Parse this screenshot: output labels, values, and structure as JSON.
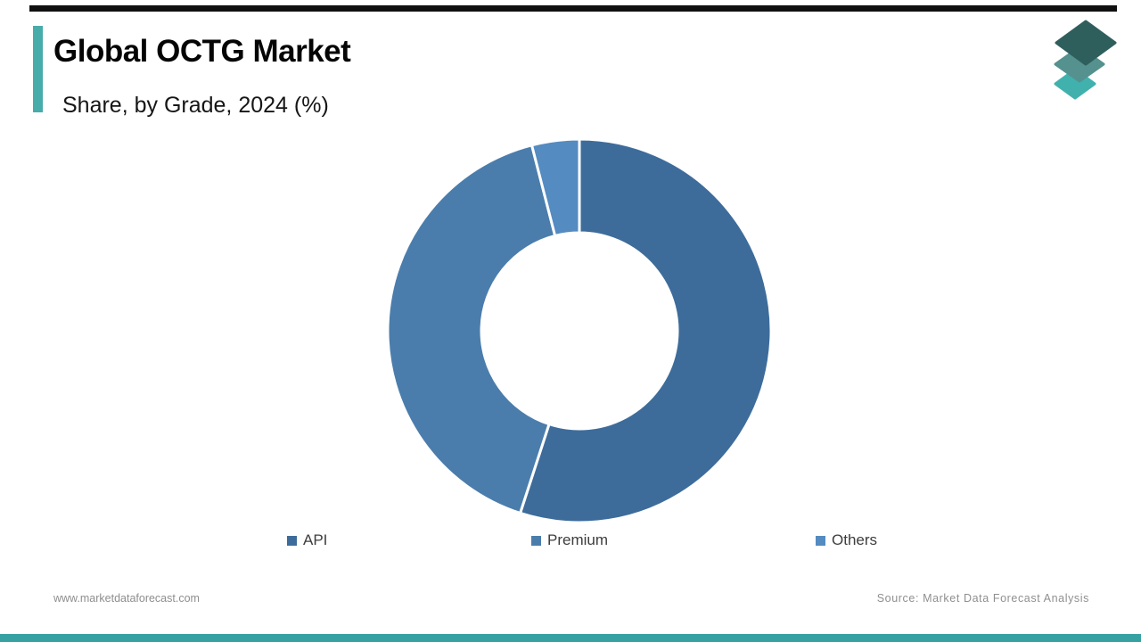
{
  "header": {
    "title": "Global OCTG Market",
    "subtitle": "Share, by Grade, 2024 (%)"
  },
  "branding": {
    "accent_color": "#48acab",
    "top_bar_color": "#101010",
    "bottom_bar_color": "#35a2a1",
    "logo_icon": "stacked-layers-icon",
    "logo_colors": [
      "#41b1ae",
      "#55918e",
      "#2f5f5d"
    ]
  },
  "footer": {
    "website": "www.marketdataforecast.com",
    "source": "Source: Market Data Forecast Analysis"
  },
  "chart_data": {
    "type": "pie",
    "donut": true,
    "title": "Global OCTG Market",
    "subtitle": "Share, by Grade, 2024 (%)",
    "categories": [
      "API",
      "Premium",
      "Others"
    ],
    "values": [
      55,
      41,
      4
    ],
    "unit": "%",
    "colors": [
      "#3d6c9b",
      "#4a7dac",
      "#548bc0"
    ],
    "segment_stroke": "#ffffff",
    "segment_stroke_width": 3,
    "start_angle_deg": 0,
    "direction": "clockwise",
    "inner_radius_ratio": 0.512,
    "legend_position": "bottom",
    "data_labels_shown": false
  }
}
